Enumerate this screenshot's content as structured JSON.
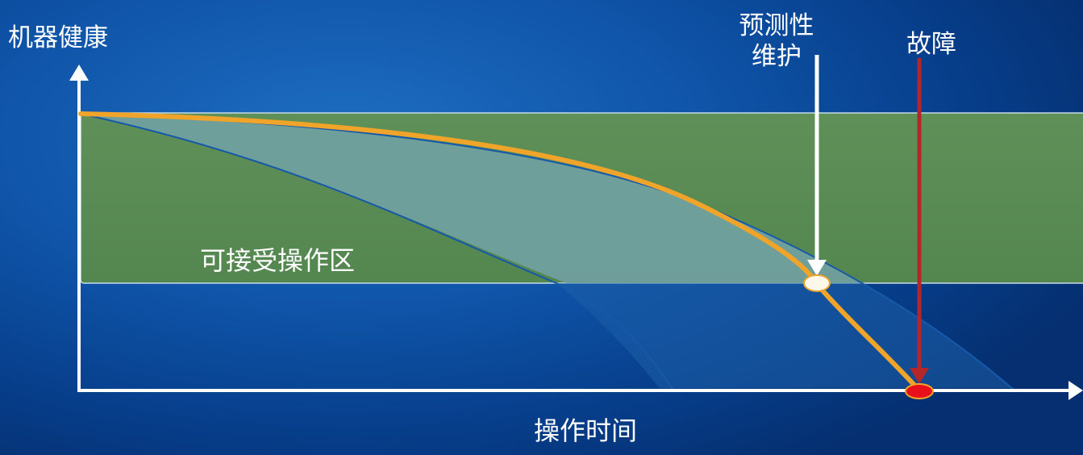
{
  "labels": {
    "y_axis": "机器健康",
    "x_axis": "操作时间",
    "acceptable_zone": "可接受操作区",
    "predictive_maintenance_line1": "预测性",
    "predictive_maintenance_line2": "维护",
    "failure": "故障"
  },
  "colors": {
    "background": "#0f54a8",
    "acceptable_zone": "#5a8c54",
    "degradation_band": "#6e9c9a",
    "health_curve": "#f0a429",
    "failure_arrow": "#b3262a",
    "failure_point": "#e8101a",
    "pm_point": "#fff8ea",
    "axis": "#ffffff"
  },
  "markers": {
    "predictive_maintenance": {
      "shape": "ellipse",
      "color": "#fff8ea",
      "arrow": "white"
    },
    "failure": {
      "shape": "ellipse",
      "color": "#e8101a",
      "arrow": "dark-red"
    }
  }
}
